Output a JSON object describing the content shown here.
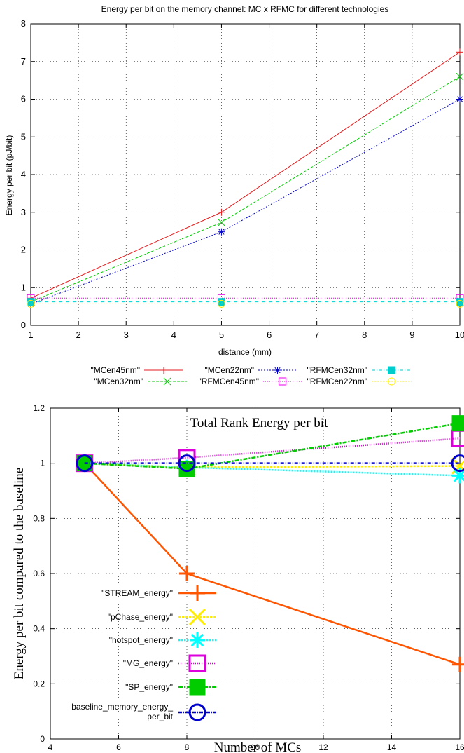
{
  "chart_data": [
    {
      "type": "line",
      "title": "Energy per bit on the memory channel: MC x RFMC for different technologies",
      "xlabel": "distance (mm)",
      "ylabel": "Energy per bit (pJ/bit)",
      "xlim": [
        1,
        10
      ],
      "ylim": [
        0,
        8
      ],
      "xticks": [
        "1",
        "2",
        "3",
        "4",
        "5",
        "6",
        "7",
        "8",
        "9",
        "10"
      ],
      "yticks": [
        "0",
        "1",
        "2",
        "3",
        "4",
        "5",
        "6",
        "7",
        "8"
      ],
      "grid": true,
      "legend_position": "below",
      "x": [
        1,
        5,
        10
      ],
      "series": [
        {
          "name": "\"MCen45nm\"",
          "values": [
            0.72,
            3.0,
            7.25
          ],
          "color": "#e41a1c",
          "marker": "plus",
          "dash": ""
        },
        {
          "name": "\"MCen32nm\"",
          "values": [
            0.62,
            2.73,
            6.6
          ],
          "color": "#00cc00",
          "marker": "x",
          "dash": "4,2"
        },
        {
          "name": "\"MCen22nm\"",
          "values": [
            0.56,
            2.48,
            6.0
          ],
          "color": "#0000cc",
          "marker": "star",
          "dash": "2,2"
        },
        {
          "name": "\"RFMCen45nm\"",
          "values": [
            0.72,
            0.72,
            0.72
          ],
          "color": "#e600e6",
          "marker": "square",
          "dash": "1,2"
        },
        {
          "name": "\"RFMCen32nm\"",
          "values": [
            0.62,
            0.62,
            0.62
          ],
          "color": "#00cccc",
          "marker": "filled-square",
          "dash": "5,2,1,2"
        },
        {
          "name": "\"RFMCen22nm\"",
          "values": [
            0.57,
            0.57,
            0.57
          ],
          "color": "#ffee00",
          "marker": "circle",
          "dash": "2,2"
        }
      ]
    },
    {
      "type": "line",
      "title": "Total Rank Energy per bit",
      "xlabel": "Number of MCs",
      "ylabel": "Energy per bit compared to the baseline",
      "xlim": [
        4,
        16
      ],
      "ylim": [
        0,
        1.2
      ],
      "xticks": [
        "4",
        "6",
        "8",
        "10",
        "12",
        "14",
        "16"
      ],
      "yticks": [
        "0",
        "0.2",
        "0.4",
        "0.6",
        "0.8",
        "1",
        "1.2"
      ],
      "grid": true,
      "legend_position": "inside-left",
      "x": [
        5,
        8,
        16
      ],
      "series": [
        {
          "name": "\"STREAM_energy\"",
          "values": [
            1.0,
            0.6,
            0.27
          ],
          "color": "#ff5500",
          "marker": "plus",
          "dash": ""
        },
        {
          "name": "\"pChase_energy\"",
          "values": [
            1.0,
            0.985,
            0.99
          ],
          "color": "#ffee00",
          "marker": "x",
          "dash": "3,2"
        },
        {
          "name": "\"hotspot_energy\"",
          "values": [
            1.0,
            0.985,
            0.955
          ],
          "color": "#00ffff",
          "marker": "star",
          "dash": "2,2"
        },
        {
          "name": "\"MG_energy\"",
          "values": [
            1.0,
            1.02,
            1.09
          ],
          "color": "#dd00dd",
          "marker": "square",
          "dash": "1,2"
        },
        {
          "name": "\"SP_energy\"",
          "values": [
            1.0,
            0.98,
            1.145
          ],
          "color": "#00cc00",
          "marker": "filled-square",
          "dash": "6,2,2,2"
        },
        {
          "name": "baseline_memory_energy_",
          "name2": "per_bit",
          "values": [
            1.0,
            1.0,
            1.0
          ],
          "color": "#0000cc",
          "marker": "circle",
          "dash": "5,2,1,2"
        }
      ]
    }
  ]
}
